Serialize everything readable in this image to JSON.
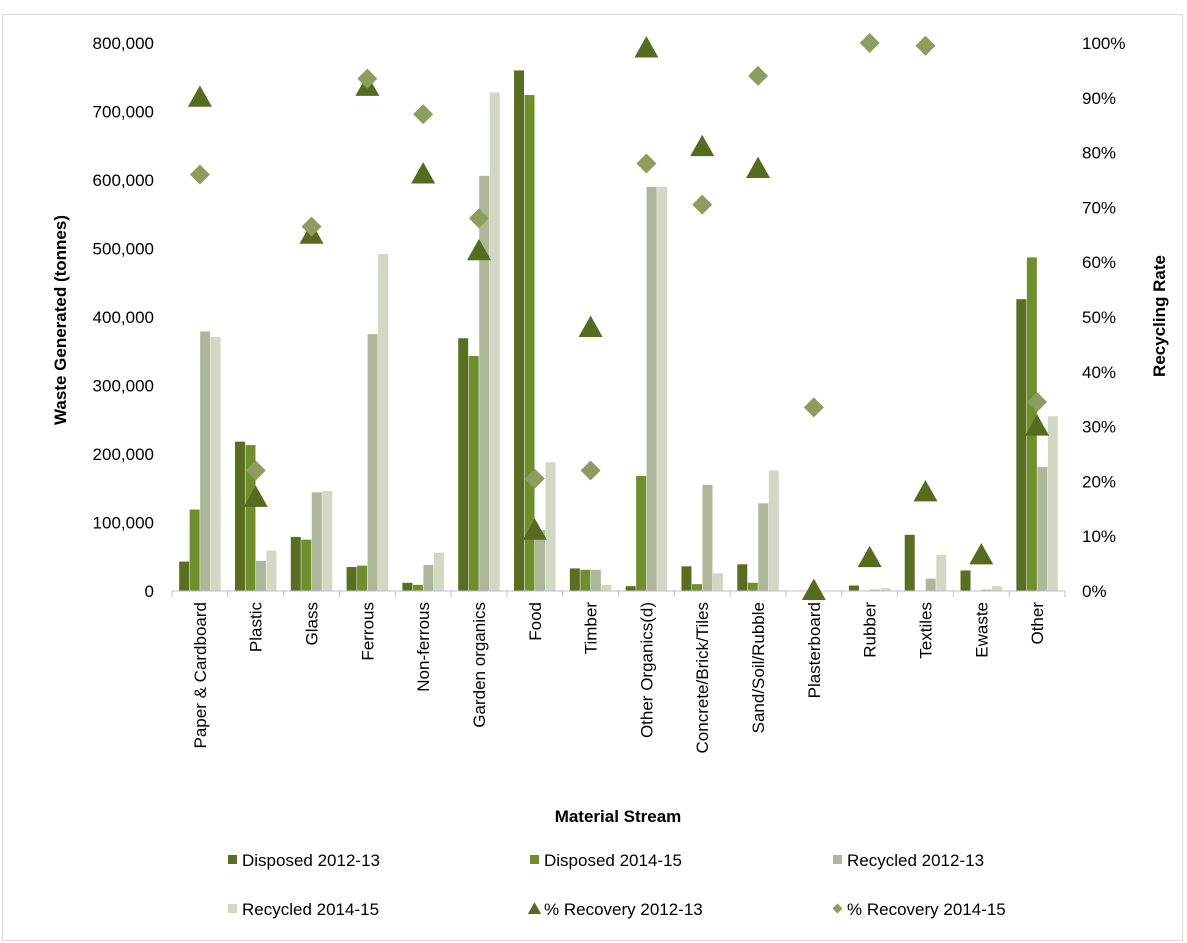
{
  "chart_data": {
    "type": "bar",
    "xlabel": "Material Stream",
    "ylabel": "Waste Generated (tonnes)",
    "y2label": "Recycling Rate",
    "ylim": [
      0,
      800000
    ],
    "y2lim": [
      0,
      1
    ],
    "y_ticks": [
      "0",
      "100,000",
      "200,000",
      "300,000",
      "400,000",
      "500,000",
      "600,000",
      "700,000",
      "800,000"
    ],
    "y2_ticks": [
      "0%",
      "10%",
      "20%",
      "30%",
      "40%",
      "50%",
      "60%",
      "70%",
      "80%",
      "90%",
      "100%"
    ],
    "legend_position": "bottom",
    "grid": false,
    "categories": [
      "Paper  & Cardboard",
      "Plastic",
      "Glass",
      "Ferrous",
      "Non-ferrous",
      "Garden organics",
      "Food",
      "Timber",
      "Other Organics(d)",
      "Concrete/Brick/Tiles",
      "Sand/Soil/Rubble",
      "Plasterboard",
      "Rubber",
      "Textiles",
      "Ewaste",
      "Other"
    ],
    "series": [
      {
        "name": "Disposed 2012-13",
        "kind": "bar",
        "axis": "left",
        "color": "#5a6e23",
        "values": [
          43000,
          218000,
          79000,
          35000,
          12000,
          369000,
          760000,
          33000,
          7000,
          36000,
          39000,
          0,
          8000,
          82000,
          30000,
          426000
        ]
      },
      {
        "name": "Disposed 2014-15",
        "kind": "bar",
        "axis": "left",
        "color": "#6f8f2c",
        "values": [
          119000,
          213000,
          75000,
          37000,
          9000,
          343000,
          724000,
          31000,
          168000,
          10000,
          12000,
          0,
          0,
          0,
          0,
          487000
        ]
      },
      {
        "name": "Recycled 2012-13",
        "kind": "bar",
        "axis": "left",
        "color": "#aeb79a",
        "values": [
          379000,
          44000,
          144000,
          375000,
          38000,
          606000,
          89000,
          31000,
          590000,
          155000,
          128000,
          0,
          2000,
          18000,
          2000,
          181000
        ]
      },
      {
        "name": "Recycled 2014-15",
        "kind": "bar",
        "axis": "left",
        "color": "#d3d8c4",
        "values": [
          371000,
          59000,
          146000,
          492000,
          56000,
          728000,
          188000,
          9000,
          590000,
          26000,
          176000,
          0,
          4000,
          53000,
          7000,
          255000
        ]
      },
      {
        "name": "% Recovery 2012-13",
        "kind": "triangle",
        "axis": "right",
        "color": "#576b1f",
        "values": [
          0.9,
          0.17,
          0.65,
          0.92,
          0.76,
          0.62,
          0.11,
          0.48,
          0.99,
          0.81,
          0.77,
          0.0,
          0.06,
          0.18,
          0.065,
          0.3
        ]
      },
      {
        "name": "% Recovery 2014-15",
        "kind": "diamond",
        "axis": "right",
        "color": "#8e9c60",
        "values": [
          0.76,
          0.22,
          0.665,
          0.935,
          0.87,
          0.68,
          0.205,
          0.22,
          0.78,
          0.705,
          0.94,
          0.335,
          1.0,
          0.995,
          null,
          0.345
        ]
      }
    ]
  }
}
